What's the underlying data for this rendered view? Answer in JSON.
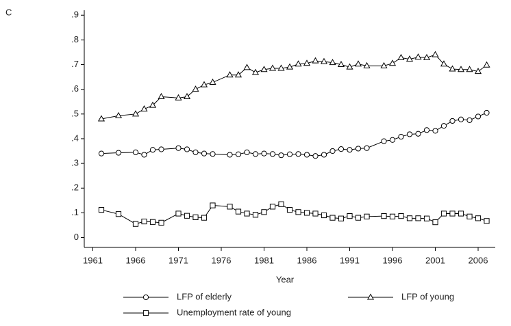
{
  "chart_data": {
    "type": "line",
    "panel_label": "C",
    "x_label": "Year",
    "x": [
      1962,
      1964,
      1966,
      1967,
      1968,
      1969,
      1971,
      1972,
      1973,
      1974,
      1975,
      1977,
      1978,
      1979,
      1980,
      1981,
      1982,
      1983,
      1984,
      1985,
      1986,
      1987,
      1988,
      1989,
      1990,
      1991,
      1992,
      1993,
      1995,
      1996,
      1997,
      1998,
      1999,
      2000,
      2001,
      2002,
      2003,
      2004,
      2005,
      2006,
      2007
    ],
    "series": [
      {
        "name": "LFP of elderly",
        "marker": "circle",
        "color": "#000000",
        "values": [
          0.34,
          0.343,
          0.345,
          0.335,
          0.355,
          0.357,
          0.362,
          0.357,
          0.345,
          0.34,
          0.338,
          0.335,
          0.337,
          0.345,
          0.338,
          0.34,
          0.338,
          0.333,
          0.337,
          0.338,
          0.335,
          0.33,
          0.335,
          0.35,
          0.358,
          0.355,
          0.36,
          0.362,
          0.39,
          0.395,
          0.408,
          0.418,
          0.42,
          0.435,
          0.432,
          0.452,
          0.472,
          0.478,
          0.475,
          0.49,
          0.505
        ]
      },
      {
        "name": "LFP of young",
        "marker": "triangle",
        "color": "#000000",
        "values": [
          0.48,
          0.493,
          0.5,
          0.52,
          0.535,
          0.57,
          0.565,
          0.57,
          0.6,
          0.618,
          0.628,
          0.658,
          0.658,
          0.688,
          0.668,
          0.68,
          0.685,
          0.685,
          0.69,
          0.702,
          0.705,
          0.715,
          0.712,
          0.708,
          0.7,
          0.69,
          0.702,
          0.695,
          0.695,
          0.705,
          0.728,
          0.722,
          0.73,
          0.728,
          0.74,
          0.702,
          0.682,
          0.68,
          0.68,
          0.672,
          0.698
        ]
      },
      {
        "name": "Unemployment rate of young",
        "marker": "square",
        "color": "#000000",
        "values": [
          0.112,
          0.095,
          0.055,
          0.065,
          0.063,
          0.06,
          0.097,
          0.088,
          0.082,
          0.08,
          0.13,
          0.125,
          0.105,
          0.097,
          0.092,
          0.103,
          0.125,
          0.135,
          0.112,
          0.103,
          0.1,
          0.097,
          0.09,
          0.08,
          0.077,
          0.087,
          0.08,
          0.085,
          0.087,
          0.085,
          0.087,
          0.078,
          0.078,
          0.077,
          0.062,
          0.097,
          0.097,
          0.097,
          0.085,
          0.078,
          0.067
        ]
      }
    ],
    "xlim": [
      1960,
      2008
    ],
    "xticks": [
      1961,
      1966,
      1971,
      1976,
      1981,
      1986,
      1991,
      1996,
      2001,
      2006
    ],
    "ylim": [
      -0.04,
      0.92
    ],
    "yticks": [
      0,
      {
        "value": 0.1,
        "label": ".1"
      },
      {
        "value": 0.2,
        "label": ".2"
      },
      {
        "value": 0.3,
        "label": ".3"
      },
      {
        "value": 0.4,
        "label": ".4"
      },
      {
        "value": 0.5,
        "label": ".5"
      },
      {
        "value": 0.6,
        "label": ".6"
      },
      {
        "value": 0.7,
        "label": ".7"
      },
      {
        "value": 0.8,
        "label": ".8"
      },
      {
        "value": 0.9,
        "label": ".9"
      }
    ],
    "grid": false
  }
}
